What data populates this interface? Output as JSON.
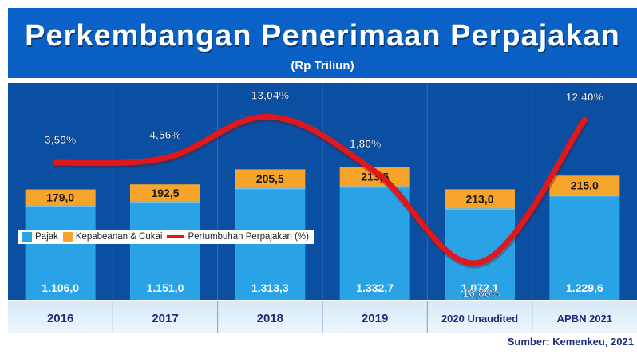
{
  "header": {
    "title": "Perkembangan Penerimaan Perpajakan",
    "subtitle": "(Rp Triliun)"
  },
  "source": "Sumber: Kemenkeu, 2021",
  "legend": {
    "pajak": "Pajak",
    "cukai": "Kepabeanan & Cukai",
    "growth": "Pertumbuhan Perpajakan (%)"
  },
  "colors": {
    "pajak": "#2aa3e6",
    "cukai": "#f7a52a",
    "growth": "#e0181b",
    "background": "#0a4fa2",
    "header": "#0a63c9"
  },
  "chart_data": {
    "type": "bar",
    "stacked": true,
    "categories": [
      "2016",
      "2017",
      "2018",
      "2019",
      "2020 Unaudited",
      "APBN 2021"
    ],
    "series": [
      {
        "name": "Pajak",
        "values": [
          1106.0,
          1151.0,
          1313.3,
          1332.7,
          1072.1,
          1229.6
        ],
        "labels": [
          "1.106,0",
          "1.151,0",
          "1.313,3",
          "1.332,7",
          "1.072,1",
          "1.229,6"
        ]
      },
      {
        "name": "Kepabeanan & Cukai",
        "values": [
          179.0,
          192.5,
          205.5,
          213.5,
          213.0,
          215.0
        ],
        "labels": [
          "179,0",
          "192,5",
          "205,5",
          "213,5",
          "213,0",
          "215,0"
        ]
      },
      {
        "name": "Pertumbuhan Perpajakan (%)",
        "type": "line",
        "values": [
          3.59,
          4.56,
          13.04,
          1.8,
          -16.88,
          12.4
        ],
        "labels": [
          "3,59%",
          "4,56%",
          "13,04%",
          "1,80%",
          "-16,88%",
          "12,40%"
        ]
      }
    ]
  }
}
